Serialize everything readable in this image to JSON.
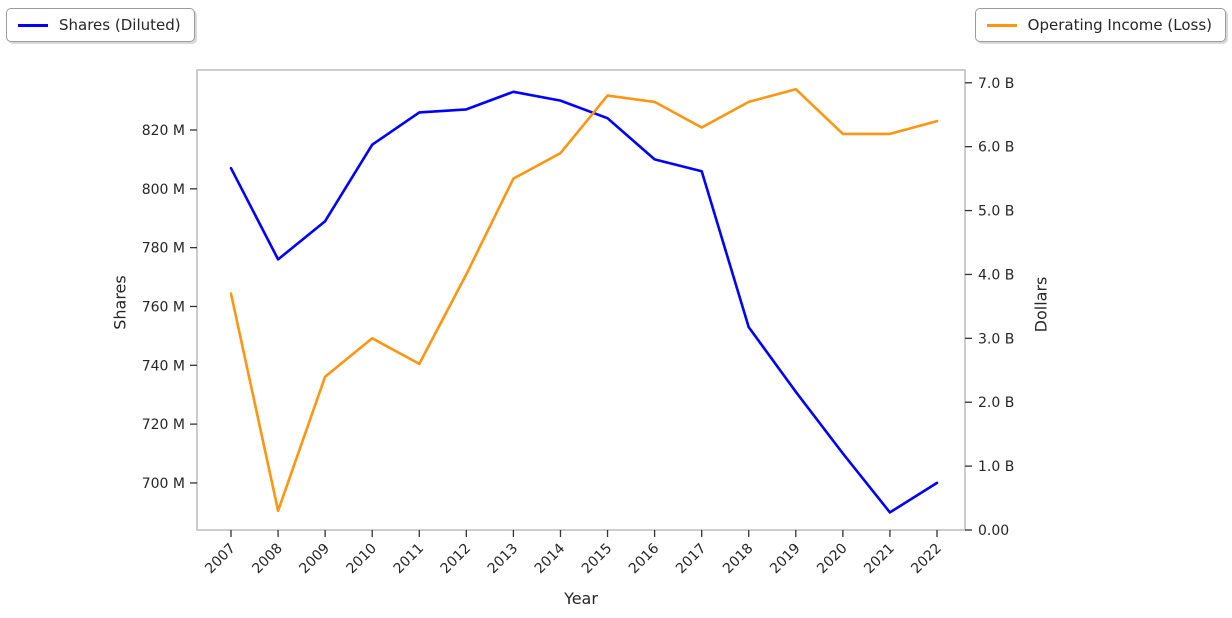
{
  "legends": {
    "shares": "Shares (Diluted)",
    "operating_income": "Operating Income (Loss)"
  },
  "axis_labels": {
    "x": "Year",
    "y_left": "Shares",
    "y_right": "Dollars"
  },
  "colors": {
    "shares_line": "#0000ff",
    "operating_income_line": "#ff9510",
    "frame": "#cccccc",
    "tick_mark": "#333333",
    "text": "#262626"
  },
  "chart_data": {
    "type": "line",
    "title": "",
    "xlabel": "Year",
    "categories": [
      "2007",
      "2008",
      "2009",
      "2010",
      "2011",
      "2012",
      "2013",
      "2014",
      "2015",
      "2016",
      "2017",
      "2018",
      "2019",
      "2020",
      "2021",
      "2022"
    ],
    "series": [
      {
        "name": "Shares (Diluted)",
        "axis": "left",
        "unit": "millions of shares",
        "color": "#0000ff",
        "values": [
          807,
          776,
          789,
          815,
          826,
          827,
          833,
          830,
          824,
          810,
          806,
          753,
          731,
          710,
          690,
          700
        ]
      },
      {
        "name": "Operating Income (Loss)",
        "axis": "right",
        "unit": "billions of dollars",
        "color": "#ff9510",
        "values": [
          3.7,
          0.3,
          2.4,
          3.0,
          2.6,
          4.0,
          5.5,
          5.9,
          6.8,
          6.7,
          6.3,
          6.7,
          6.9,
          6.2,
          6.2,
          6.4
        ]
      }
    ],
    "left_axis": {
      "label": "Shares",
      "tick_labels": [
        "820 M",
        "800 M",
        "780 M",
        "760 M",
        "740 M",
        "720 M",
        "700 M"
      ],
      "tick_values": [
        820,
        800,
        780,
        760,
        740,
        720,
        700
      ],
      "ylim": [
        684,
        840.4
      ]
    },
    "right_axis": {
      "label": "Dollars",
      "tick_labels": [
        "7.0 B",
        "6.0 B",
        "5.0 B",
        "4.0 B",
        "3.0 B",
        "2.0 B",
        "1.0 B",
        "0.00"
      ],
      "tick_values": [
        7,
        6,
        5,
        4,
        3,
        2,
        1,
        0
      ],
      "ylim": [
        0,
        7.2
      ]
    },
    "legend_position": {
      "shares": "upper left",
      "operating_income": "upper right"
    },
    "grid": false
  }
}
